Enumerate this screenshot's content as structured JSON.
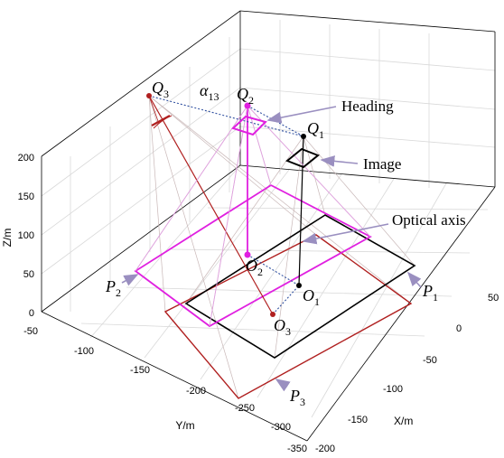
{
  "axes": {
    "z_label": "Z/m",
    "y_label": "Y/m",
    "x_label": "X/m",
    "z_ticks": [
      "200",
      "150",
      "100",
      "50",
      "0"
    ],
    "y_ticks": [
      "-50",
      "-100",
      "-150",
      "-200",
      "-250",
      "-300",
      "-350"
    ],
    "x_ticks": [
      "50",
      "0",
      "-50",
      "-100",
      "-150",
      "-200"
    ]
  },
  "callouts": {
    "heading": "Heading",
    "image": "Image",
    "optical_axis": "Optical axis"
  },
  "points": {
    "Q3": {
      "letter": "Q",
      "index": "3"
    },
    "Q2": {
      "letter": "Q",
      "index": "2"
    },
    "Q1": {
      "letter": "Q",
      "index": "1"
    },
    "O2": {
      "letter": "O",
      "index": "2"
    },
    "O1": {
      "letter": "O",
      "index": "1"
    },
    "O3": {
      "letter": "O",
      "index": "3"
    },
    "P1": {
      "letter": "P",
      "index": "1"
    },
    "P2": {
      "letter": "P",
      "index": "2"
    },
    "P3": {
      "letter": "P",
      "index": "3"
    },
    "alpha": {
      "letter": "α",
      "index": "13"
    }
  },
  "colors": {
    "magenta": "#e020e0",
    "dark_red": "#b02020",
    "black": "#000000",
    "callout_arrow": "#9a8fc0",
    "dotted_blue": "#3050a0"
  }
}
